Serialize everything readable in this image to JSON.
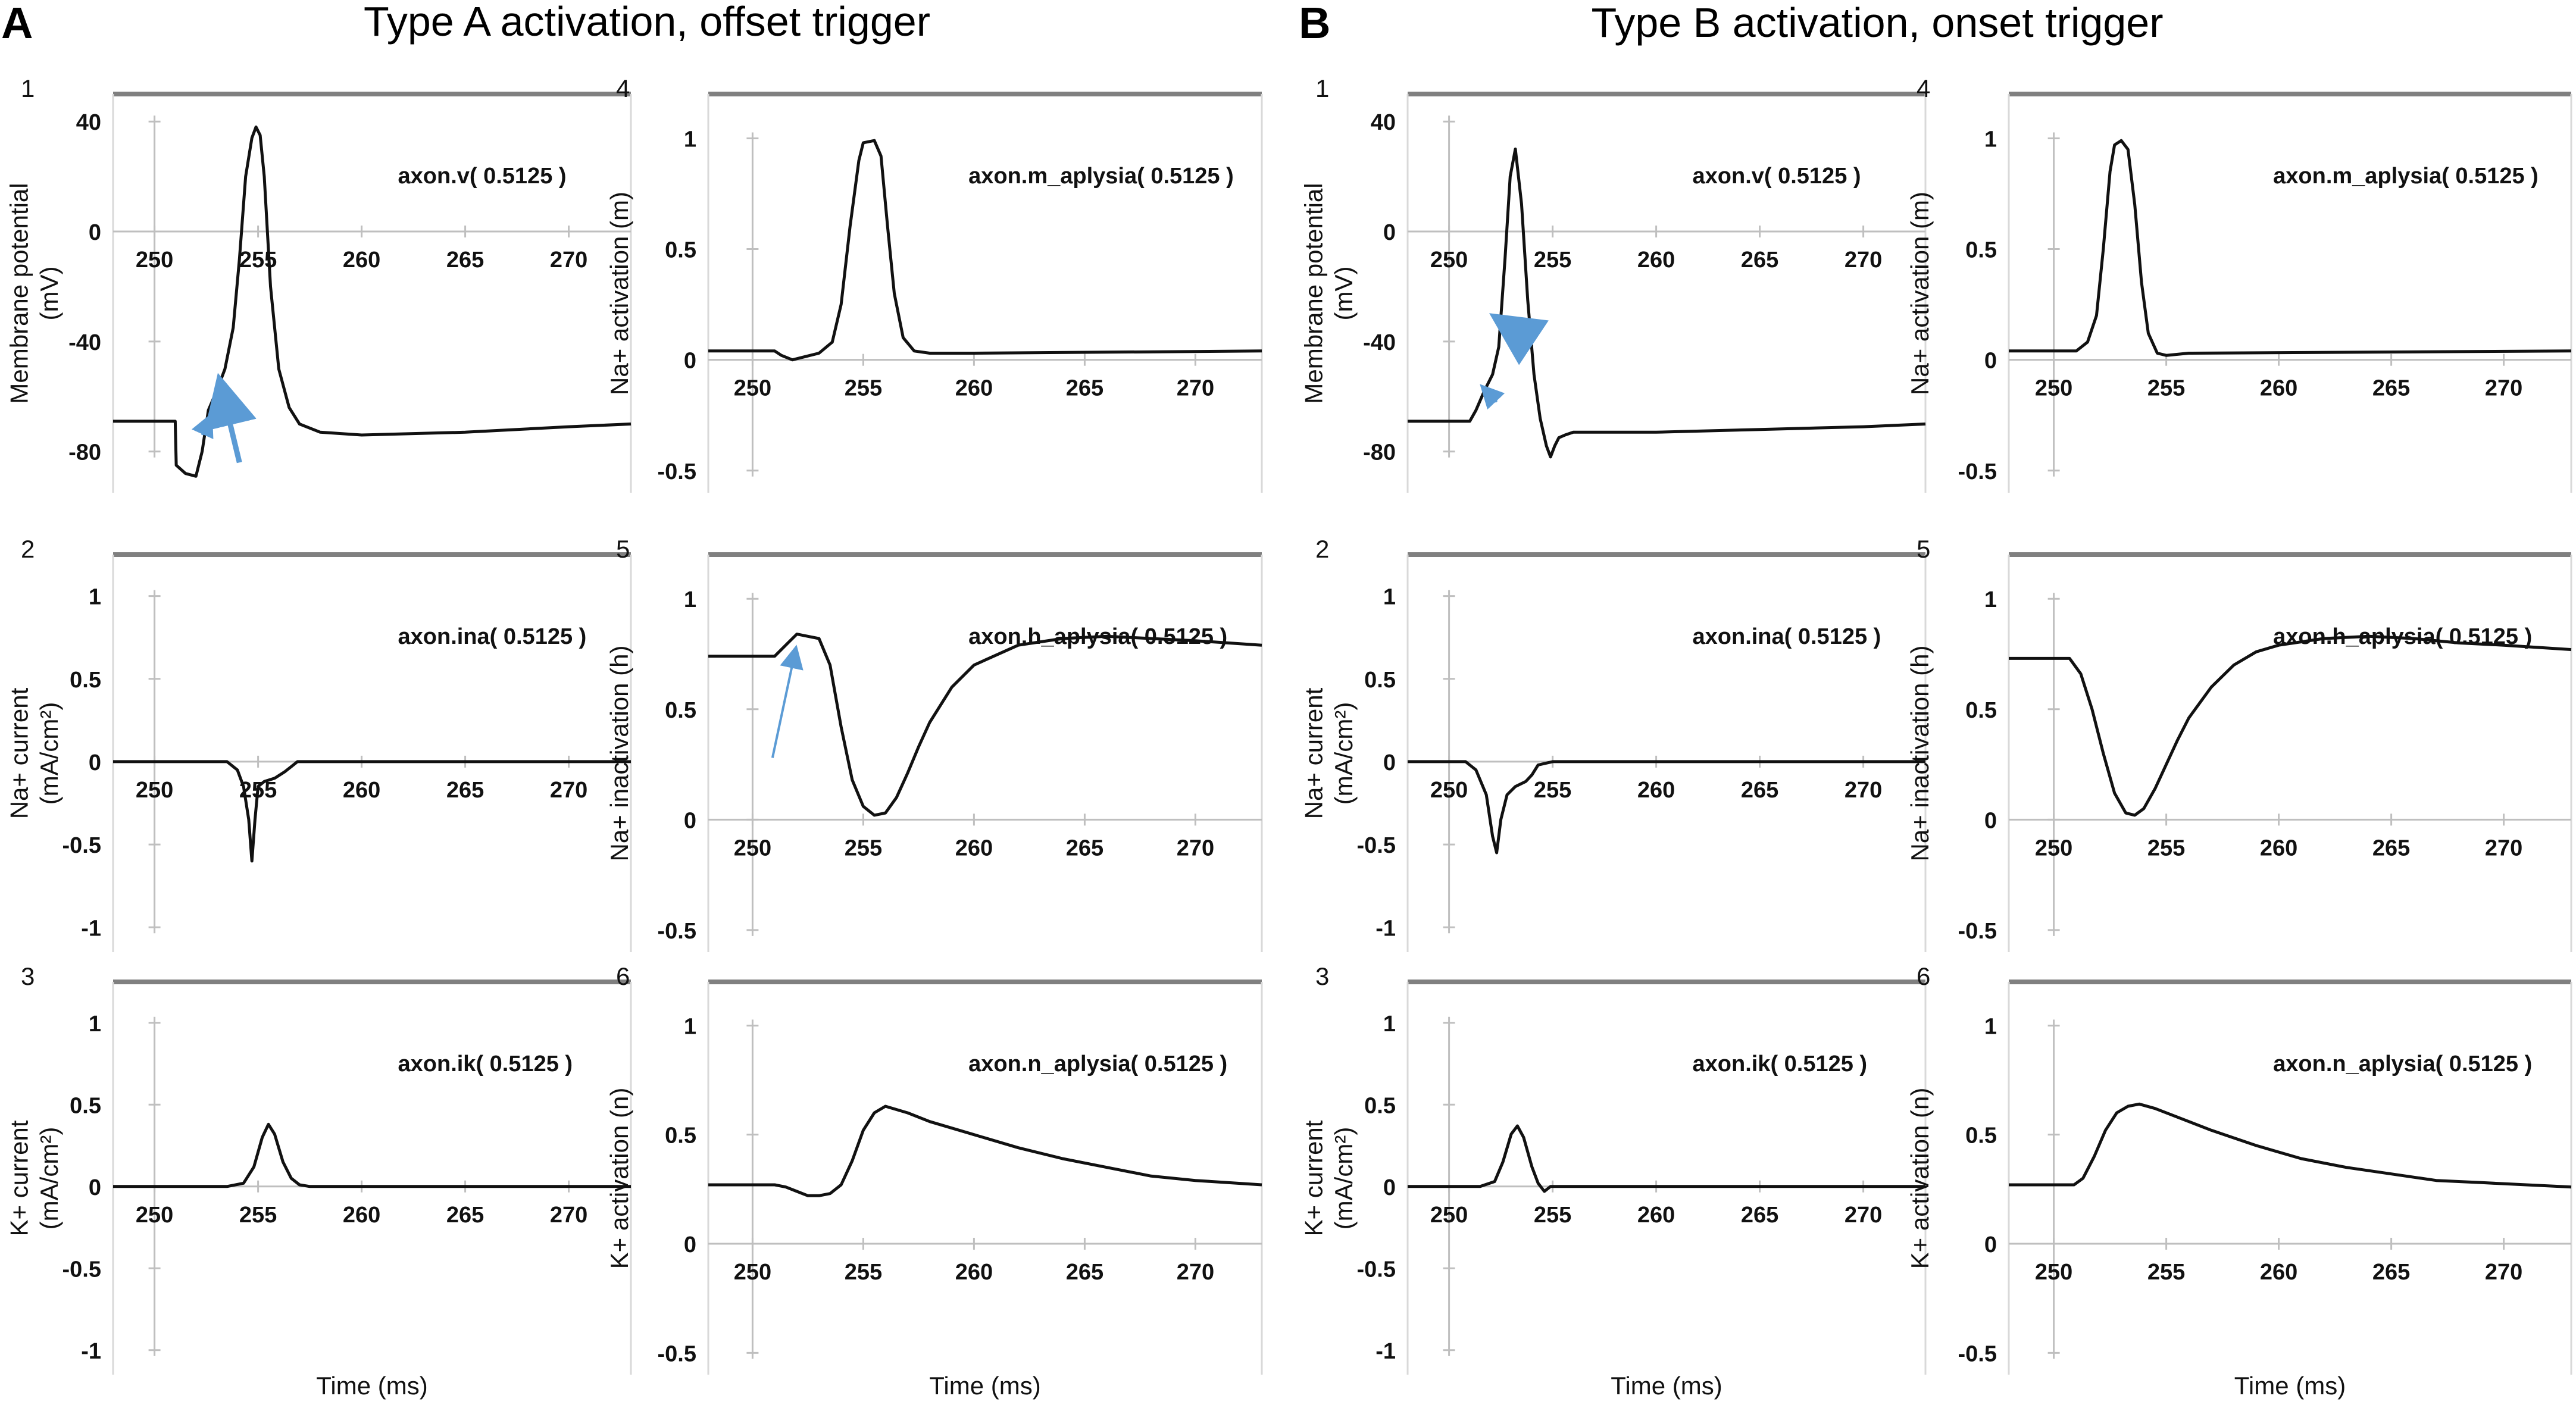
{
  "figure": {
    "panels": [
      {
        "label": "A",
        "title": "Type A activation, offset trigger"
      },
      {
        "label": "B",
        "title": "Type B activation, onset trigger"
      }
    ],
    "arrow_color": "#5b9bd5",
    "trace_color": "#111111",
    "frame_color": "#808080"
  },
  "chart_data": [
    {
      "type": "line",
      "panel": "A",
      "number": "1",
      "annotation": "axon.v( 0.5125 )",
      "ylabel": "Membrane potential (mV)",
      "xlabel": "Time (ms)",
      "xlim": [
        248,
        273
      ],
      "ylim": [
        -95,
        50
      ],
      "xticks": [
        250,
        255,
        260,
        265,
        270
      ],
      "yticks": [
        40,
        0,
        -40,
        -80
      ],
      "series": [
        {
          "name": "axon.v( 0.5125 )",
          "x": [
            248,
            251.0,
            251.05,
            251.5,
            252.0,
            252.3,
            252.6,
            253.0,
            253.4,
            253.8,
            254.1,
            254.4,
            254.7,
            254.9,
            255.1,
            255.3,
            255.6,
            256.0,
            256.5,
            257.0,
            258.0,
            260.0,
            265.0,
            270.0,
            273.0
          ],
          "y": [
            -69,
            -69,
            -85,
            -88,
            -89,
            -80,
            -65,
            -58,
            -50,
            -35,
            -10,
            20,
            34,
            38,
            35,
            20,
            -20,
            -50,
            -64,
            -70,
            -73,
            -74,
            -73,
            -71,
            -70
          ]
        }
      ],
      "arrows": [
        {
          "from": [
            252.3,
            -74
          ],
          "to": [
            252.6,
            -69
          ],
          "size": "small"
        },
        {
          "from": [
            254.1,
            -84
          ],
          "to": [
            253.3,
            -59
          ],
          "size": "large"
        }
      ]
    },
    {
      "type": "line",
      "panel": "A",
      "number": "2",
      "annotation": "axon.ina( 0.5125 )",
      "ylabel": "Na+ current (mA/cm²)",
      "xlabel": "Time (ms)",
      "xlim": [
        248,
        273
      ],
      "ylim": [
        -1.15,
        1.25
      ],
      "xticks": [
        250,
        255,
        260,
        265,
        270
      ],
      "yticks": [
        1,
        0.5,
        0,
        -0.5,
        -1
      ],
      "series": [
        {
          "name": "axon.ina( 0.5125 )",
          "x": [
            248,
            253.5,
            254.0,
            254.3,
            254.55,
            254.7,
            254.85,
            255.0,
            255.3,
            255.8,
            256.3,
            256.6,
            256.9,
            258,
            273
          ],
          "y": [
            0,
            0,
            -0.05,
            -0.15,
            -0.35,
            -0.6,
            -0.35,
            -0.15,
            -0.12,
            -0.1,
            -0.06,
            -0.03,
            0,
            0,
            0
          ]
        }
      ]
    },
    {
      "type": "line",
      "panel": "A",
      "number": "3",
      "annotation": "axon.ik( 0.5125 )",
      "ylabel": "K+ current (mA/cm²)",
      "xlabel": "Time (ms)",
      "xlim": [
        248,
        273
      ],
      "ylim": [
        -1.15,
        1.25
      ],
      "xticks": [
        250,
        255,
        260,
        265,
        270
      ],
      "yticks": [
        1,
        0.5,
        0,
        -0.5,
        -1
      ],
      "series": [
        {
          "name": "axon.ik( 0.5125 )",
          "x": [
            248,
            253.5,
            254.3,
            254.8,
            255.2,
            255.5,
            255.8,
            256.2,
            256.6,
            257.0,
            257.5,
            273
          ],
          "y": [
            0,
            0,
            0.02,
            0.12,
            0.3,
            0.38,
            0.32,
            0.15,
            0.05,
            0.01,
            0,
            0
          ]
        }
      ]
    },
    {
      "type": "line",
      "panel": "A",
      "number": "4",
      "annotation": "axon.m_aplysia( 0.5125 )",
      "ylabel": "Na+ activation (m)",
      "xlabel": "Time (ms)",
      "xlim": [
        248,
        273
      ],
      "ylim": [
        -0.6,
        1.2
      ],
      "xticks": [
        250,
        255,
        260,
        265,
        270
      ],
      "yticks": [
        1,
        0.5,
        0,
        -0.5
      ],
      "series": [
        {
          "name": "axon.m_aplysia( 0.5125 )",
          "x": [
            248,
            251.0,
            251.3,
            251.8,
            252.2,
            253.0,
            253.6,
            254.0,
            254.4,
            254.8,
            255.0,
            255.5,
            255.8,
            256.1,
            256.4,
            256.8,
            257.3,
            258.0,
            260.0,
            273
          ],
          "y": [
            0.04,
            0.04,
            0.02,
            0.0,
            0.01,
            0.03,
            0.08,
            0.25,
            0.6,
            0.9,
            0.98,
            0.99,
            0.92,
            0.6,
            0.3,
            0.1,
            0.04,
            0.03,
            0.03,
            0.04
          ]
        }
      ]
    },
    {
      "type": "line",
      "panel": "A",
      "number": "5",
      "annotation": "axon.h_aplysia( 0.5125 )",
      "ylabel": "Na+ inactivation (h)",
      "xlabel": "Time (ms)",
      "xlim": [
        248,
        273
      ],
      "ylim": [
        -0.6,
        1.2
      ],
      "xticks": [
        250,
        255,
        260,
        265,
        270
      ],
      "yticks": [
        1,
        0.5,
        0,
        -0.5
      ],
      "series": [
        {
          "name": "axon.h_aplysia( 0.5125 )",
          "x": [
            248,
            251.0,
            251.6,
            252.0,
            252.5,
            253.0,
            253.5,
            254.0,
            254.5,
            255.0,
            255.5,
            256.0,
            256.5,
            257.0,
            257.5,
            258.0,
            259.0,
            260.0,
            262.0,
            264.0,
            266.0,
            268.0,
            270.0,
            273.0
          ],
          "y": [
            0.74,
            0.74,
            0.8,
            0.84,
            0.83,
            0.82,
            0.7,
            0.42,
            0.18,
            0.06,
            0.02,
            0.03,
            0.1,
            0.21,
            0.33,
            0.44,
            0.6,
            0.7,
            0.79,
            0.82,
            0.83,
            0.82,
            0.81,
            0.79
          ]
        }
      ],
      "arrows": [
        {
          "from": [
            250.9,
            0.28
          ],
          "to": [
            251.9,
            0.75
          ],
          "size": "medium"
        }
      ]
    },
    {
      "type": "line",
      "panel": "A",
      "number": "6",
      "annotation": "axon.n_aplysia( 0.5125 )",
      "ylabel": "K+ activation (n)",
      "xlabel": "Time (ms)",
      "xlim": [
        248,
        273
      ],
      "ylim": [
        -0.6,
        1.2
      ],
      "xticks": [
        250,
        255,
        260,
        265,
        270
      ],
      "yticks": [
        1,
        0.5,
        0,
        -0.5
      ],
      "series": [
        {
          "name": "axon.n_aplysia( 0.5125 )",
          "x": [
            248,
            251.0,
            251.5,
            252.0,
            252.5,
            253.0,
            253.5,
            254.0,
            254.5,
            255.0,
            255.5,
            256.0,
            257.0,
            258.0,
            260.0,
            262.0,
            264.0,
            266.0,
            268.0,
            270.0,
            273.0
          ],
          "y": [
            0.27,
            0.27,
            0.26,
            0.24,
            0.22,
            0.22,
            0.23,
            0.27,
            0.38,
            0.52,
            0.6,
            0.63,
            0.6,
            0.56,
            0.5,
            0.44,
            0.39,
            0.35,
            0.31,
            0.29,
            0.27
          ]
        }
      ]
    },
    {
      "type": "line",
      "panel": "B",
      "number": "1",
      "annotation": "axon.v( 0.5125 )",
      "ylabel": "Membrane potential (mV)",
      "xlabel": "Time (ms)",
      "xlim": [
        248,
        273
      ],
      "ylim": [
        -95,
        50
      ],
      "xticks": [
        250,
        255,
        260,
        265,
        270
      ],
      "yticks": [
        40,
        0,
        -40,
        -80
      ],
      "series": [
        {
          "name": "axon.v( 0.5125 )",
          "x": [
            248,
            251.0,
            251.3,
            251.7,
            252.1,
            252.4,
            252.7,
            252.95,
            253.2,
            253.5,
            253.8,
            254.1,
            254.4,
            254.7,
            254.9,
            255.1,
            255.3,
            255.6,
            256.0,
            257.0,
            260.0,
            265.0,
            270.0,
            273.0
          ],
          "y": [
            -69,
            -69,
            -65,
            -58,
            -52,
            -42,
            -10,
            20,
            30,
            10,
            -25,
            -52,
            -68,
            -78,
            -82,
            -78,
            -75,
            -74,
            -73,
            -73,
            -73,
            -72,
            -71,
            -70
          ]
        }
      ],
      "arrows": [
        {
          "from": [
            252.3,
            -62
          ],
          "to": [
            251.8,
            -58
          ],
          "size": "small"
        },
        {
          "from": [
            253.8,
            -39
          ],
          "to": [
            252.8,
            -34
          ],
          "size": "large"
        }
      ]
    },
    {
      "type": "line",
      "panel": "B",
      "number": "2",
      "annotation": "axon.ina( 0.5125 )",
      "ylabel": "Na+ current (mA/cm²)",
      "xlabel": "Time (ms)",
      "xlim": [
        248,
        273
      ],
      "ylim": [
        -1.15,
        1.25
      ],
      "xticks": [
        250,
        255,
        260,
        265,
        270
      ],
      "yticks": [
        1,
        0.5,
        0,
        -0.5,
        -1
      ],
      "series": [
        {
          "name": "axon.ina( 0.5125 )",
          "x": [
            248,
            250.8,
            251.3,
            251.8,
            252.1,
            252.3,
            252.5,
            252.8,
            253.2,
            253.7,
            254.0,
            254.3,
            255.0,
            273
          ],
          "y": [
            0,
            0,
            -0.05,
            -0.2,
            -0.45,
            -0.55,
            -0.35,
            -0.2,
            -0.15,
            -0.12,
            -0.08,
            -0.02,
            0,
            0
          ]
        }
      ]
    },
    {
      "type": "line",
      "panel": "B",
      "number": "3",
      "annotation": "axon.ik( 0.5125 )",
      "ylabel": "K+ current (mA/cm²)",
      "xlabel": "Time (ms)",
      "xlim": [
        248,
        273
      ],
      "ylim": [
        -1.15,
        1.25
      ],
      "xticks": [
        250,
        255,
        260,
        265,
        270
      ],
      "yticks": [
        1,
        0.5,
        0,
        -0.5,
        -1
      ],
      "series": [
        {
          "name": "axon.ik( 0.5125 )",
          "x": [
            248,
            251.5,
            252.2,
            252.6,
            253.0,
            253.3,
            253.6,
            254.0,
            254.3,
            254.6,
            254.9,
            255.3,
            273
          ],
          "y": [
            0,
            0,
            0.03,
            0.15,
            0.32,
            0.37,
            0.3,
            0.12,
            0.02,
            -0.03,
            0,
            0,
            0
          ]
        }
      ]
    },
    {
      "type": "line",
      "panel": "B",
      "number": "4",
      "annotation": "axon.m_aplysia( 0.5125 )",
      "ylabel": "Na+ activation (m)",
      "xlabel": "Time (ms)",
      "xlim": [
        248,
        273
      ],
      "ylim": [
        -0.6,
        1.2
      ],
      "xticks": [
        250,
        255,
        260,
        265,
        270
      ],
      "yticks": [
        1,
        0.5,
        0,
        -0.5
      ],
      "series": [
        {
          "name": "axon.m_aplysia( 0.5125 )",
          "x": [
            248,
            251.0,
            251.5,
            251.9,
            252.2,
            252.5,
            252.7,
            253.0,
            253.3,
            253.6,
            253.9,
            254.2,
            254.6,
            255.0,
            256.0,
            273
          ],
          "y": [
            0.04,
            0.04,
            0.08,
            0.2,
            0.5,
            0.85,
            0.97,
            0.99,
            0.95,
            0.7,
            0.35,
            0.12,
            0.03,
            0.02,
            0.03,
            0.04
          ]
        }
      ]
    },
    {
      "type": "line",
      "panel": "B",
      "number": "5",
      "annotation": "axon.h_aplysia( 0.5125 )",
      "ylabel": "Na+ inactivation (h)",
      "xlabel": "Time (ms)",
      "xlim": [
        248,
        273
      ],
      "ylim": [
        -0.6,
        1.2
      ],
      "xticks": [
        250,
        255,
        260,
        265,
        270
      ],
      "yticks": [
        1,
        0.5,
        0,
        -0.5
      ],
      "series": [
        {
          "name": "axon.h_aplysia( 0.5125 )",
          "x": [
            248,
            250.7,
            251.2,
            251.7,
            252.2,
            252.7,
            253.2,
            253.6,
            254.0,
            254.5,
            255.0,
            255.5,
            256.0,
            257.0,
            258.0,
            259.0,
            260.0,
            262.0,
            264.0,
            266.0,
            268.0,
            270.0,
            273.0
          ],
          "y": [
            0.73,
            0.73,
            0.66,
            0.5,
            0.3,
            0.12,
            0.03,
            0.02,
            0.05,
            0.14,
            0.25,
            0.36,
            0.46,
            0.6,
            0.7,
            0.76,
            0.79,
            0.82,
            0.83,
            0.82,
            0.8,
            0.79,
            0.77
          ]
        }
      ]
    },
    {
      "type": "line",
      "panel": "B",
      "number": "6",
      "annotation": "axon.n_aplysia( 0.5125 )",
      "ylabel": "K+ activation (n)",
      "xlabel": "Time (ms)",
      "xlim": [
        248,
        273
      ],
      "ylim": [
        -0.6,
        1.2
      ],
      "xticks": [
        250,
        255,
        260,
        265,
        270
      ],
      "yticks": [
        1,
        0.5,
        0,
        -0.5
      ],
      "series": [
        {
          "name": "axon.n_aplysia( 0.5125 )",
          "x": [
            248,
            250.9,
            251.3,
            251.8,
            252.3,
            252.8,
            253.3,
            253.8,
            254.5,
            255.5,
            257.0,
            259.0,
            261.0,
            263.0,
            265.0,
            267.0,
            269.0,
            271.0,
            273.0
          ],
          "y": [
            0.27,
            0.27,
            0.3,
            0.4,
            0.52,
            0.6,
            0.63,
            0.64,
            0.62,
            0.58,
            0.52,
            0.45,
            0.39,
            0.35,
            0.32,
            0.29,
            0.28,
            0.27,
            0.26
          ]
        }
      ]
    }
  ]
}
